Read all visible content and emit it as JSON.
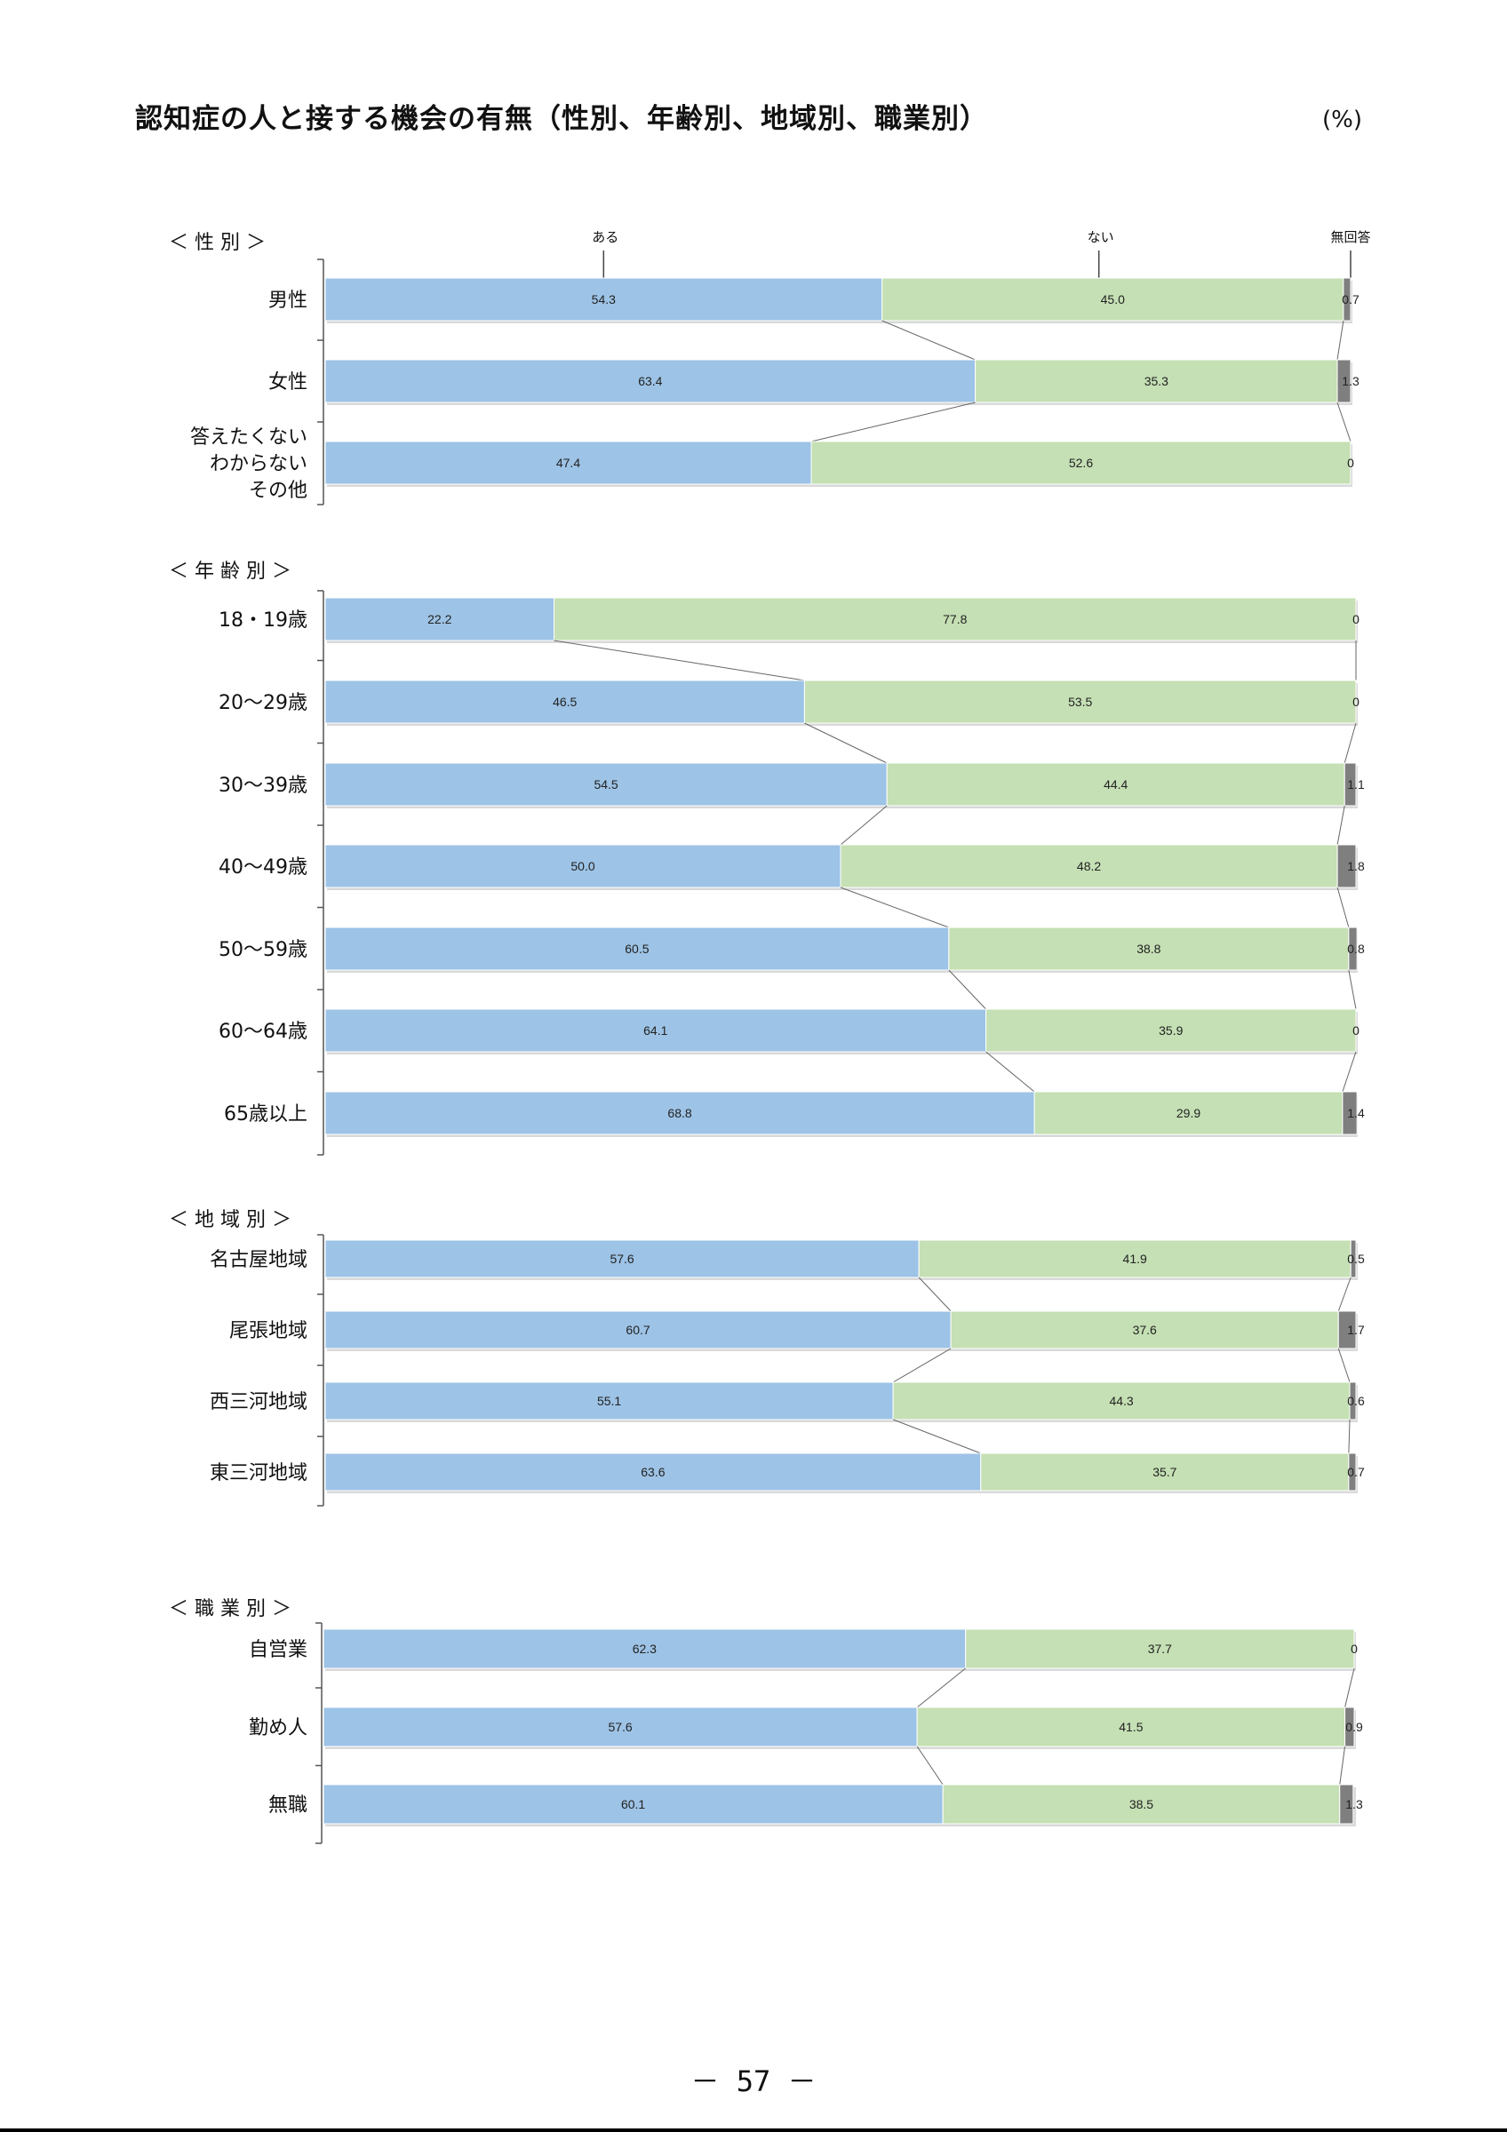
{
  "title": "認知症の人と接する機会の有無（性別、年齢別、地域別、職業別）",
  "unit": "(%)",
  "page_number": "－ 57 －",
  "colors": {
    "aru": "#9DC3E6",
    "nai": "#C5E0B4",
    "mukaitou": "#7F7F7F",
    "axis": "#555555"
  },
  "chart_data": {
    "type": "bar",
    "orientation": "horizontal-stacked-100",
    "title": "認知症の人と接する機会の有無（性別、年齢別、地域別、職業別）",
    "unit": "(%)",
    "legend": [
      "ある",
      "ない",
      "無回答"
    ],
    "sections": [
      {
        "label": "＜ 性 別 ＞",
        "rows": [
          {
            "label": [
              "男性"
            ],
            "values": [
              54.3,
              45.0,
              0.7
            ],
            "labels": [
              "54.3",
              "45.0",
              "0.7"
            ]
          },
          {
            "label": [
              "女性"
            ],
            "values": [
              63.4,
              35.3,
              1.3
            ],
            "labels": [
              "63.4",
              "35.3",
              "1.3"
            ]
          },
          {
            "label": [
              "答えたくない",
              "わからない",
              "その他"
            ],
            "values": [
              47.4,
              52.6,
              0
            ],
            "labels": [
              "47.4",
              "52.6",
              "0"
            ]
          }
        ]
      },
      {
        "label": "＜ 年 齢 別 ＞",
        "rows": [
          {
            "label": [
              "18・19歳"
            ],
            "values": [
              22.2,
              77.8,
              0
            ],
            "labels": [
              "22.2",
              "77.8",
              "0"
            ]
          },
          {
            "label": [
              "20～29歳"
            ],
            "values": [
              46.5,
              53.5,
              0
            ],
            "labels": [
              "46.5",
              "53.5",
              "0"
            ]
          },
          {
            "label": [
              "30～39歳"
            ],
            "values": [
              54.5,
              44.4,
              1.1
            ],
            "labels": [
              "54.5",
              "44.4",
              "1.1"
            ]
          },
          {
            "label": [
              "40～49歳"
            ],
            "values": [
              50.0,
              48.2,
              1.8
            ],
            "labels": [
              "50.0",
              "48.2",
              "1.8"
            ]
          },
          {
            "label": [
              "50～59歳"
            ],
            "values": [
              60.5,
              38.8,
              0.8
            ],
            "labels": [
              "60.5",
              "38.8",
              "0.8"
            ]
          },
          {
            "label": [
              "60～64歳"
            ],
            "values": [
              64.1,
              35.9,
              0
            ],
            "labels": [
              "64.1",
              "35.9",
              "0"
            ]
          },
          {
            "label": [
              "65歳以上"
            ],
            "values": [
              68.8,
              29.9,
              1.4
            ],
            "labels": [
              "68.8",
              "29.9",
              "1.4"
            ]
          }
        ]
      },
      {
        "label": "＜ 地 域 別 ＞",
        "rows": [
          {
            "label": [
              "名古屋地域"
            ],
            "values": [
              57.6,
              41.9,
              0.5
            ],
            "labels": [
              "57.6",
              "41.9",
              "0.5"
            ]
          },
          {
            "label": [
              "尾張地域"
            ],
            "values": [
              60.7,
              37.6,
              1.7
            ],
            "labels": [
              "60.7",
              "37.6",
              "1.7"
            ]
          },
          {
            "label": [
              "西三河地域"
            ],
            "values": [
              55.1,
              44.3,
              0.6
            ],
            "labels": [
              "55.1",
              "44.3",
              "0.6"
            ]
          },
          {
            "label": [
              "東三河地域"
            ],
            "values": [
              63.6,
              35.7,
              0.7
            ],
            "labels": [
              "63.6",
              "35.7",
              "0.7"
            ]
          }
        ]
      },
      {
        "label": "＜ 職 業 別 ＞",
        "rows": [
          {
            "label": [
              "自営業"
            ],
            "values": [
              62.3,
              37.7,
              0
            ],
            "labels": [
              "62.3",
              "37.7",
              "0"
            ]
          },
          {
            "label": [
              "勤め人"
            ],
            "values": [
              57.6,
              41.5,
              0.9
            ],
            "labels": [
              "57.6",
              "41.5",
              "0.9"
            ]
          },
          {
            "label": [
              "無職"
            ],
            "values": [
              60.1,
              38.5,
              1.3
            ],
            "labels": [
              "60.1",
              "38.5",
              "1.3"
            ]
          }
        ]
      }
    ]
  }
}
